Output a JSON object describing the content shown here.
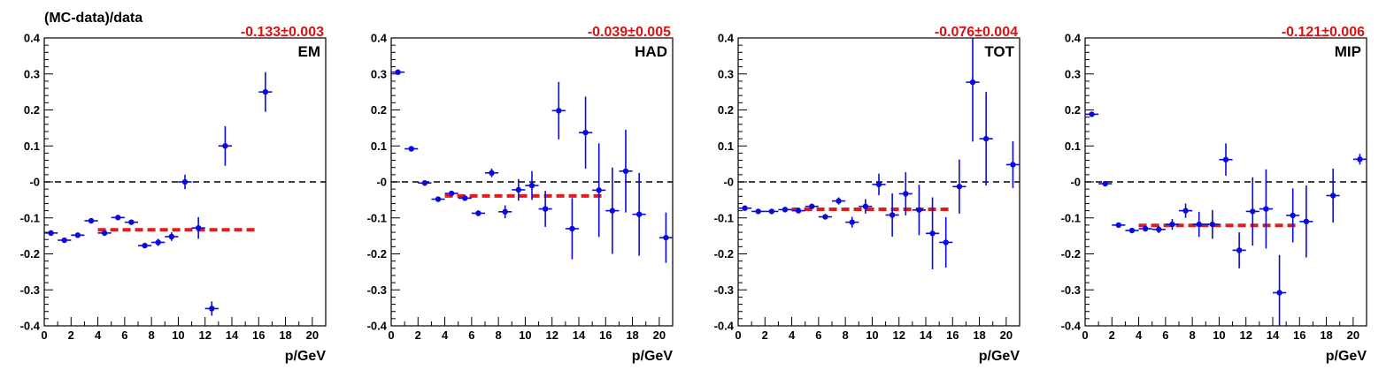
{
  "figure_title": "(MC-data)/data",
  "colors": {
    "points": "#0a0ae0",
    "fit": "#e61a1a",
    "zero": "#000000",
    "fit_text": "#e01010"
  },
  "chart_data": [
    {
      "type": "scatter",
      "label": "EM",
      "fit_text": "-0.133±0.003",
      "fit": {
        "value": -0.133,
        "x_range": [
          4,
          16
        ]
      },
      "xlabel": "p/GeV",
      "ylabel": "",
      "xlim": [
        0,
        21
      ],
      "ylim": [
        -0.4,
        0.4
      ],
      "xticks": [
        "0",
        "2",
        "4",
        "6",
        "8",
        "10",
        "12",
        "14",
        "16",
        "18",
        "20"
      ],
      "yticks": [
        "-0.4",
        "-0.3",
        "-0.2",
        "-0.1",
        "-0",
        "0.1",
        "0.2",
        "0.3",
        "0.4"
      ],
      "points": [
        {
          "x": 0.5,
          "y": -0.142,
          "err": 0.003
        },
        {
          "x": 1.5,
          "y": -0.162,
          "err": 0.003
        },
        {
          "x": 2.5,
          "y": -0.148,
          "err": 0.003
        },
        {
          "x": 3.5,
          "y": -0.108,
          "err": 0.004
        },
        {
          "x": 4.5,
          "y": -0.142,
          "err": 0.005
        },
        {
          "x": 5.5,
          "y": -0.099,
          "err": 0.004
        },
        {
          "x": 6.5,
          "y": -0.112,
          "err": 0.006
        },
        {
          "x": 7.5,
          "y": -0.177,
          "err": 0.007
        },
        {
          "x": 8.5,
          "y": -0.168,
          "err": 0.01
        },
        {
          "x": 9.5,
          "y": -0.152,
          "err": 0.012
        },
        {
          "x": 10.5,
          "y": 0.0,
          "err": 0.02
        },
        {
          "x": 11.5,
          "y": -0.128,
          "err": 0.03
        },
        {
          "x": 12.5,
          "y": -0.352,
          "err": 0.02
        },
        {
          "x": 13.5,
          "y": 0.1,
          "err": 0.055
        },
        {
          "x": 16.5,
          "y": 0.25,
          "err": 0.055
        }
      ]
    },
    {
      "type": "scatter",
      "label": "HAD",
      "fit_text": "-0.039±0.005",
      "fit": {
        "value": -0.039,
        "x_range": [
          4,
          16
        ]
      },
      "xlabel": "p/GeV",
      "ylabel": "",
      "xlim": [
        0,
        21
      ],
      "ylim": [
        -0.4,
        0.4
      ],
      "xticks": [
        "0",
        "2",
        "4",
        "6",
        "8",
        "10",
        "12",
        "14",
        "16",
        "18",
        "20"
      ],
      "yticks": [
        "-0.4",
        "-0.3",
        "-0.2",
        "-0.1",
        "-0",
        "0.1",
        "0.2",
        "0.3",
        "0.4"
      ],
      "points": [
        {
          "x": 0.5,
          "y": 0.305,
          "err": 0.004
        },
        {
          "x": 1.5,
          "y": 0.092,
          "err": 0.004
        },
        {
          "x": 2.5,
          "y": -0.003,
          "err": 0.003
        },
        {
          "x": 3.5,
          "y": -0.048,
          "err": 0.004
        },
        {
          "x": 4.5,
          "y": -0.032,
          "err": 0.005
        },
        {
          "x": 5.5,
          "y": -0.045,
          "err": 0.006
        },
        {
          "x": 6.5,
          "y": -0.087,
          "err": 0.008
        },
        {
          "x": 7.5,
          "y": 0.025,
          "err": 0.012
        },
        {
          "x": 8.5,
          "y": -0.083,
          "err": 0.018
        },
        {
          "x": 9.5,
          "y": -0.022,
          "err": 0.03
        },
        {
          "x": 10.5,
          "y": -0.01,
          "err": 0.04
        },
        {
          "x": 11.5,
          "y": -0.075,
          "err": 0.05
        },
        {
          "x": 12.5,
          "y": 0.198,
          "err": 0.08
        },
        {
          "x": 13.5,
          "y": -0.13,
          "err": 0.085
        },
        {
          "x": 14.5,
          "y": 0.137,
          "err": 0.1
        },
        {
          "x": 15.5,
          "y": -0.023,
          "err": 0.13
        },
        {
          "x": 16.5,
          "y": -0.08,
          "err": 0.12
        },
        {
          "x": 17.5,
          "y": 0.03,
          "err": 0.115
        },
        {
          "x": 18.5,
          "y": -0.09,
          "err": 0.115
        },
        {
          "x": 20.5,
          "y": -0.155,
          "err": 0.07
        }
      ]
    },
    {
      "type": "scatter",
      "label": "TOT",
      "fit_text": "-0.076±0.004",
      "fit": {
        "value": -0.076,
        "x_range": [
          4,
          16
        ]
      },
      "xlabel": "p/GeV",
      "ylabel": "",
      "xlim": [
        0,
        21
      ],
      "ylim": [
        -0.4,
        0.4
      ],
      "xticks": [
        "0",
        "2",
        "4",
        "6",
        "8",
        "10",
        "12",
        "14",
        "16",
        "18",
        "20"
      ],
      "yticks": [
        "-0.4",
        "-0.3",
        "-0.2",
        "-0.1",
        "-0",
        "0.1",
        "0.2",
        "0.3",
        "0.4"
      ],
      "points": [
        {
          "x": 0.5,
          "y": -0.073,
          "err": 0.004
        },
        {
          "x": 1.5,
          "y": -0.082,
          "err": 0.003
        },
        {
          "x": 2.5,
          "y": -0.082,
          "err": 0.003
        },
        {
          "x": 3.5,
          "y": -0.077,
          "err": 0.004
        },
        {
          "x": 4.5,
          "y": -0.08,
          "err": 0.005
        },
        {
          "x": 5.5,
          "y": -0.068,
          "err": 0.006
        },
        {
          "x": 6.5,
          "y": -0.097,
          "err": 0.007
        },
        {
          "x": 7.5,
          "y": -0.053,
          "err": 0.01
        },
        {
          "x": 8.5,
          "y": -0.112,
          "err": 0.015
        },
        {
          "x": 9.5,
          "y": -0.068,
          "err": 0.02
        },
        {
          "x": 10.5,
          "y": -0.007,
          "err": 0.03
        },
        {
          "x": 11.5,
          "y": -0.092,
          "err": 0.06
        },
        {
          "x": 12.5,
          "y": -0.033,
          "err": 0.06
        },
        {
          "x": 13.5,
          "y": -0.078,
          "err": 0.07
        },
        {
          "x": 14.5,
          "y": -0.143,
          "err": 0.1
        },
        {
          "x": 15.5,
          "y": -0.168,
          "err": 0.07
        },
        {
          "x": 16.5,
          "y": -0.013,
          "err": 0.075
        },
        {
          "x": 17.5,
          "y": 0.277,
          "err": 0.165
        },
        {
          "x": 18.5,
          "y": 0.12,
          "err": 0.13
        },
        {
          "x": 20.5,
          "y": 0.048,
          "err": 0.065
        }
      ]
    },
    {
      "type": "scatter",
      "label": "MIP",
      "fit_text": "-0.121±0.006",
      "fit": {
        "value": -0.121,
        "x_range": [
          4,
          16
        ]
      },
      "xlabel": "p/GeV",
      "ylabel": "",
      "xlim": [
        0,
        21
      ],
      "ylim": [
        -0.4,
        0.4
      ],
      "xticks": [
        "0",
        "2",
        "4",
        "6",
        "8",
        "10",
        "12",
        "14",
        "16",
        "18",
        "20"
      ],
      "yticks": [
        "-0.4",
        "-0.3",
        "-0.2",
        "-0.1",
        "-0",
        "0.1",
        "0.2",
        "0.3",
        "0.4"
      ],
      "points": [
        {
          "x": 0.5,
          "y": 0.188,
          "err": 0.006
        },
        {
          "x": 1.5,
          "y": -0.005,
          "err": 0.004
        },
        {
          "x": 2.5,
          "y": -0.12,
          "err": 0.005
        },
        {
          "x": 3.5,
          "y": -0.135,
          "err": 0.006
        },
        {
          "x": 4.5,
          "y": -0.13,
          "err": 0.008
        },
        {
          "x": 5.5,
          "y": -0.132,
          "err": 0.01
        },
        {
          "x": 6.5,
          "y": -0.118,
          "err": 0.015
        },
        {
          "x": 7.5,
          "y": -0.08,
          "err": 0.02
        },
        {
          "x": 8.5,
          "y": -0.118,
          "err": 0.035
        },
        {
          "x": 9.5,
          "y": -0.118,
          "err": 0.04
        },
        {
          "x": 10.5,
          "y": 0.062,
          "err": 0.045
        },
        {
          "x": 11.5,
          "y": -0.19,
          "err": 0.05
        },
        {
          "x": 12.5,
          "y": -0.082,
          "err": 0.095
        },
        {
          "x": 13.5,
          "y": -0.075,
          "err": 0.11
        },
        {
          "x": 14.5,
          "y": -0.308,
          "err": 0.105
        },
        {
          "x": 15.5,
          "y": -0.093,
          "err": 0.075
        },
        {
          "x": 16.5,
          "y": -0.11,
          "err": 0.1
        },
        {
          "x": 18.5,
          "y": -0.038,
          "err": 0.075
        },
        {
          "x": 20.5,
          "y": 0.063,
          "err": 0.015
        }
      ]
    }
  ]
}
